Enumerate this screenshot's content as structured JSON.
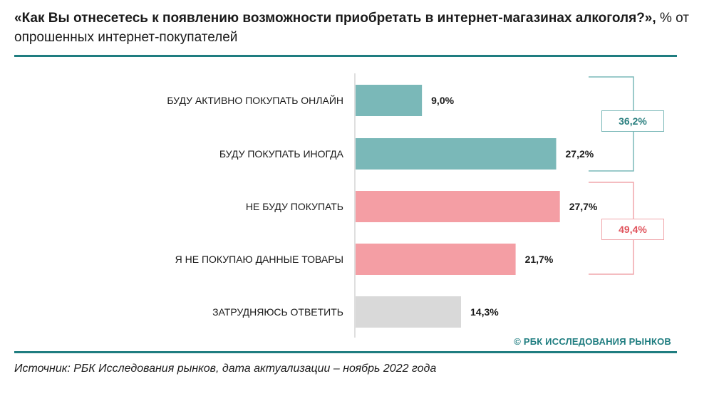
{
  "header": {
    "title_bold": "«Как Вы отнесетесь к появлению возможности приобретать в интернет-магазинах алкоголя?»,",
    "title_rest": "% от опрошенных интернет-покупателей"
  },
  "chart_data": {
    "type": "bar",
    "orientation": "horizontal",
    "title": "«Как Вы отнесетесь к появлению возможности приобретать в интернет-магазинах алкоголя?», % от опрошенных интернет-покупателей",
    "unit": "%",
    "categories": [
      "БУДУ АКТИВНО ПОКУПАТЬ ОНЛАЙН",
      "БУДУ ПОКУПАТЬ ИНОГДА",
      "НЕ БУДУ ПОКУПАТЬ",
      "Я НЕ ПОКУПАЮ ДАННЫЕ ТОВАРЫ",
      "ЗАТРУДНЯЮСЬ ОТВЕТИТЬ"
    ],
    "values": [
      9.0,
      27.2,
      27.7,
      21.7,
      14.3
    ],
    "value_labels": [
      "9,0%",
      "27,2%",
      "27,7%",
      "21,7%",
      "14,3%"
    ],
    "bar_colors": [
      "#7ab8b8",
      "#7ab8b8",
      "#f49ea4",
      "#f49ea4",
      "#d9d9d9"
    ],
    "group_totals": [
      {
        "label": "36,2%",
        "value": 36.2,
        "covers": [
          0,
          1
        ],
        "color": "#2a7f7f",
        "border": "#7ab8b8"
      },
      {
        "label": "49,4%",
        "value": 49.4,
        "covers": [
          2,
          3
        ],
        "color": "#e0535c",
        "border": "#f0a6ab"
      }
    ],
    "xlim": [
      0,
      30
    ],
    "grid": false,
    "xlabel": "",
    "ylabel": ""
  },
  "footer": {
    "brand": "© РБК ИССЛЕДОВАНИЯ РЫНКОВ",
    "source": "Источник: РБК Исследования рынков, дата актуализации – ноябрь 2022 года"
  }
}
